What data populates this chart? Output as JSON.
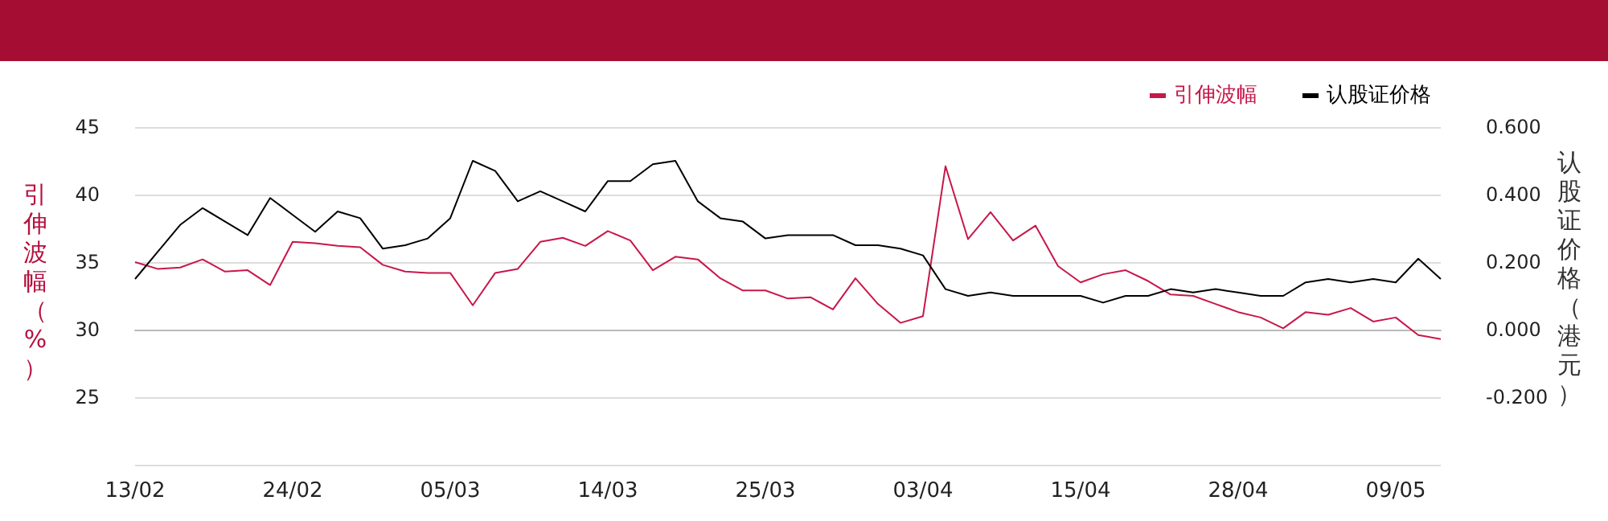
{
  "chart_data": {
    "type": "line",
    "ylabel": "引伸波幅（%）",
    "y2label": "认股证价格（港元）",
    "categories": [
      "13/02",
      null,
      null,
      null,
      null,
      null,
      null,
      "24/02",
      null,
      null,
      null,
      null,
      null,
      null,
      "05/03",
      null,
      null,
      null,
      null,
      null,
      null,
      "14/03",
      null,
      null,
      null,
      null,
      null,
      null,
      "25/03",
      null,
      null,
      null,
      null,
      null,
      null,
      "03/04",
      null,
      null,
      null,
      null,
      null,
      null,
      "15/04",
      null,
      null,
      null,
      null,
      null,
      null,
      "28/04",
      null,
      null,
      null,
      null,
      null,
      null,
      "09/05",
      null,
      null
    ],
    "series": [
      {
        "name": "引伸波幅",
        "color": "#c8174a",
        "values": [
          35.0,
          34.5,
          34.6,
          35.2,
          34.3,
          34.4,
          33.3,
          36.5,
          36.4,
          36.2,
          36.1,
          34.8,
          34.3,
          34.2,
          34.2,
          31.8,
          34.2,
          34.5,
          36.5,
          36.8,
          36.2,
          37.3,
          36.6,
          34.4,
          35.4,
          35.2,
          33.8,
          32.9,
          32.9,
          32.3,
          32.4,
          31.5,
          33.8,
          31.9,
          30.5,
          31.0,
          42.1,
          36.7,
          38.7,
          36.6,
          37.7,
          34.7,
          33.5,
          34.1,
          34.4,
          33.6,
          32.6,
          32.5,
          31.9,
          31.3,
          30.9,
          30.1,
          31.3,
          31.1,
          31.6,
          30.6,
          30.9,
          29.6,
          29.3
        ]
      },
      {
        "name": "认股证价格",
        "color": "#000000",
        "axis": "y2",
        "values": [
          0.15,
          0.23,
          0.31,
          0.36,
          0.32,
          0.28,
          0.39,
          0.34,
          0.29,
          0.35,
          0.33,
          0.24,
          0.25,
          0.27,
          0.33,
          0.5,
          0.47,
          0.38,
          0.41,
          0.38,
          0.35,
          0.44,
          0.44,
          0.49,
          0.5,
          0.38,
          0.33,
          0.32,
          0.27,
          0.28,
          0.28,
          0.28,
          0.25,
          0.25,
          0.24,
          0.22,
          0.12,
          0.1,
          0.11,
          0.1,
          0.1,
          0.1,
          0.1,
          0.08,
          0.1,
          0.1,
          0.12,
          0.11,
          0.12,
          0.11,
          0.1,
          0.1,
          0.14,
          0.15,
          0.14,
          0.15,
          0.14,
          0.21,
          0.15
        ]
      }
    ],
    "ylim": [
      20,
      45
    ],
    "yticks": [
      {
        "value": 20,
        "label": null
      },
      25,
      30,
      35,
      40,
      45
    ],
    "y2lim": [
      -0.4,
      0.6
    ],
    "y2ticks": [
      {
        "value": -0.4,
        "label": null
      },
      {
        "value": -0.2,
        "label": "-0.200"
      },
      {
        "value": 0,
        "label": "0.000"
      },
      {
        "value": 0.2,
        "label": "0.200"
      },
      {
        "value": 0.4,
        "label": "0.400"
      },
      {
        "value": 0.6,
        "label": "0.600"
      }
    ],
    "grid": "y",
    "legend": "top right",
    "marker": "none",
    "line_style": "solid"
  }
}
